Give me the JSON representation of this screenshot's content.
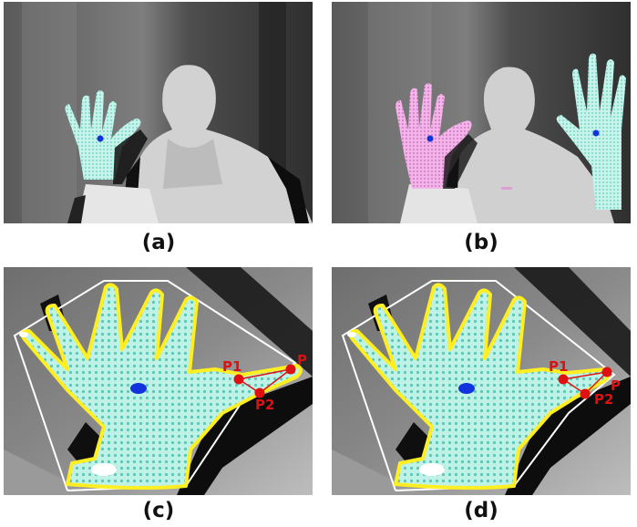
{
  "figure": {
    "panels": [
      {
        "id": "a",
        "caption": "(a)"
      },
      {
        "id": "b",
        "caption": "(b)"
      },
      {
        "id": "c",
        "caption": "(c)",
        "points": [
          "P1",
          "P",
          "P2"
        ]
      },
      {
        "id": "d",
        "caption": "(d)",
        "points": [
          "P1",
          "P",
          "P2"
        ]
      }
    ]
  },
  "colors": {
    "hand_fill": "#bff2e6",
    "hand_fill_pink": "#f0a8e6",
    "palm_center": "#1133dd",
    "contour": "#ffee22",
    "hull": "#ffffff",
    "defect_points": "#dd1111"
  }
}
